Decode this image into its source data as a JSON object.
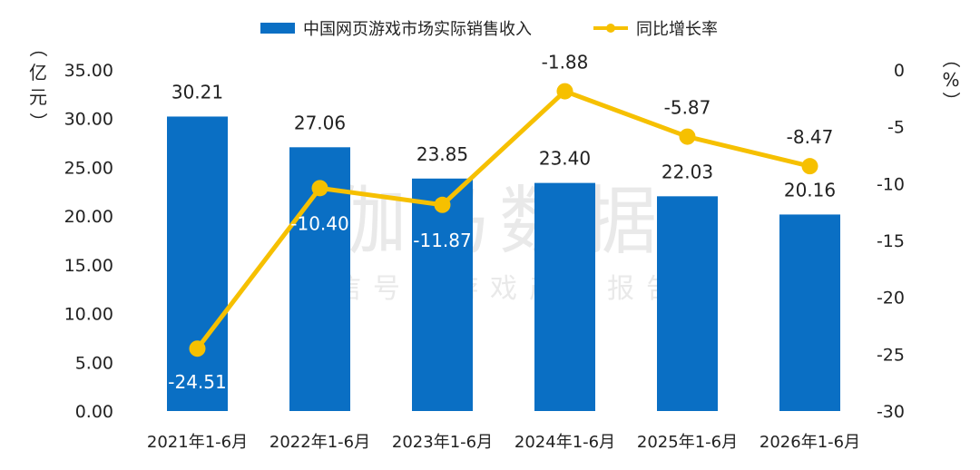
{
  "watermark": {
    "main": "伽马数据",
    "sub": "微信号：游戏产业报告"
  },
  "colors": {
    "bar": "#0a6fc4",
    "line": "#f6c000",
    "text": "#222222",
    "label_on_bar": "#ffffff",
    "watermark": "#d7d7d7"
  },
  "chart_data": {
    "type": "bar",
    "categories": [
      "2021年1-6月",
      "2022年1-6月",
      "2023年1-6月",
      "2024年1-6月",
      "2025年1-6月",
      "2026年1-6月"
    ],
    "series": [
      {
        "name": "中国网页游戏市场实际销售收入",
        "type": "bar",
        "axis": "left",
        "values": [
          30.21,
          27.06,
          23.85,
          23.4,
          22.03,
          20.16
        ],
        "labels": [
          "30.21",
          "27.06",
          "23.85",
          "23.40",
          "22.03",
          "20.16"
        ]
      },
      {
        "name": "同比增长率",
        "type": "line",
        "axis": "right",
        "values": [
          -24.51,
          -10.4,
          -11.87,
          -1.88,
          -5.87,
          -8.47
        ],
        "labels": [
          "-24.51",
          "-10.40",
          "-11.87",
          "-1.88",
          "-5.87",
          "-8.47"
        ]
      }
    ],
    "y_left": {
      "label": "（亿元）",
      "ylim": [
        0,
        35
      ],
      "ticks": [
        "0.00",
        "5.00",
        "10.00",
        "15.00",
        "20.00",
        "25.00",
        "30.00",
        "35.00"
      ]
    },
    "y_right": {
      "label": "（%）",
      "ylim": [
        -30,
        0
      ],
      "ticks": [
        "-30",
        "-25",
        "-20",
        "-15",
        "-10",
        "-5",
        "0"
      ]
    },
    "grid": false,
    "legend_position": "top-center"
  }
}
